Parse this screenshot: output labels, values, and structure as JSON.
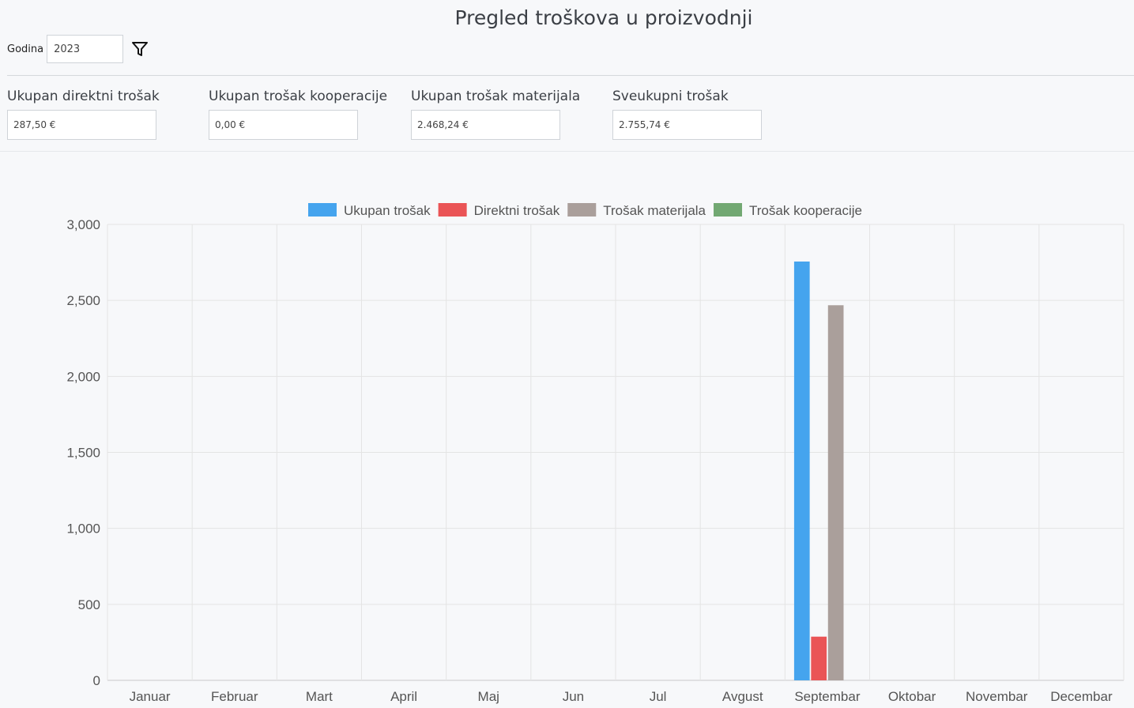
{
  "page": {
    "title": "Pregled troškova u proizvodnji"
  },
  "filter": {
    "year_label": "Godina",
    "year_value": "2023",
    "filter_icon": "filter-icon"
  },
  "kpis": [
    {
      "label": "Ukupan direktni trošak",
      "value": "287,50 €"
    },
    {
      "label": "Ukupan trošak kooperacije",
      "value": "0,00 €"
    },
    {
      "label": "Ukupan trošak materijala",
      "value": "2.468,24 €"
    },
    {
      "label": "Sveukupni trošak",
      "value": "2.755,74 €"
    }
  ],
  "chart_data": {
    "type": "bar",
    "title": "",
    "xlabel": "",
    "ylabel": "",
    "ylim": [
      0,
      3000
    ],
    "yticks": [
      "0",
      "500",
      "1,000",
      "1,500",
      "2,000",
      "2,500",
      "3,000"
    ],
    "ytick_values": [
      0,
      500,
      1000,
      1500,
      2000,
      2500,
      3000
    ],
    "grid": true,
    "legend_position": "top",
    "categories": [
      "Januar",
      "Februar",
      "Mart",
      "April",
      "Maj",
      "Jun",
      "Jul",
      "Avgust",
      "Septembar",
      "Oktobar",
      "Novembar",
      "Decembar"
    ],
    "series": [
      {
        "name": "Ukupan trošak",
        "color": "#45a4ee",
        "values": [
          0,
          0,
          0,
          0,
          0,
          0,
          0,
          0,
          2755.74,
          0,
          0,
          0
        ]
      },
      {
        "name": "Direktni trošak",
        "color": "#ea5456",
        "values": [
          0,
          0,
          0,
          0,
          0,
          0,
          0,
          0,
          287.5,
          0,
          0,
          0
        ]
      },
      {
        "name": "Trošak materijala",
        "color": "#aa9f9b",
        "values": [
          0,
          0,
          0,
          0,
          0,
          0,
          0,
          0,
          2468.24,
          0,
          0,
          0
        ]
      },
      {
        "name": "Trošak kooperacije",
        "color": "#72a872",
        "values": [
          0,
          0,
          0,
          0,
          0,
          0,
          0,
          0,
          0,
          0,
          0,
          0
        ]
      }
    ]
  }
}
